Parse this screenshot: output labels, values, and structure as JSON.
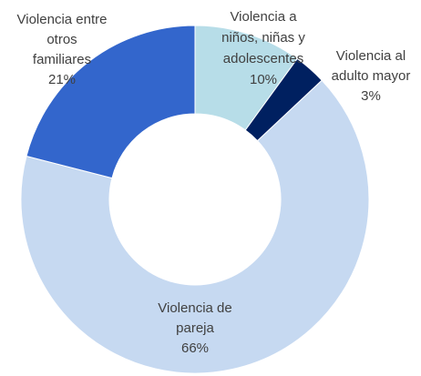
{
  "chart_data": {
    "type": "pie",
    "donut": true,
    "start_angle_deg": 0,
    "direction": "clockwise",
    "slices": [
      {
        "key": "ninos",
        "label_lines": [
          "Violencia a",
          "niños, niñas y",
          "adolescentes"
        ],
        "value_label": "10%",
        "value": 10,
        "color": "#b7dde8"
      },
      {
        "key": "adulto",
        "label_lines": [
          "Violencia al",
          "adulto mayor"
        ],
        "value_label": "3%",
        "value": 3,
        "color": "#002060"
      },
      {
        "key": "pareja",
        "label_lines": [
          "Violencia de",
          "pareja"
        ],
        "value_label": "66%",
        "value": 66,
        "color": "#c6d9f1"
      },
      {
        "key": "familiares",
        "label_lines": [
          "Violencia entre",
          "otros",
          "familiares"
        ],
        "value_label": "21%",
        "value": 21,
        "color": "#3366cc"
      }
    ]
  }
}
